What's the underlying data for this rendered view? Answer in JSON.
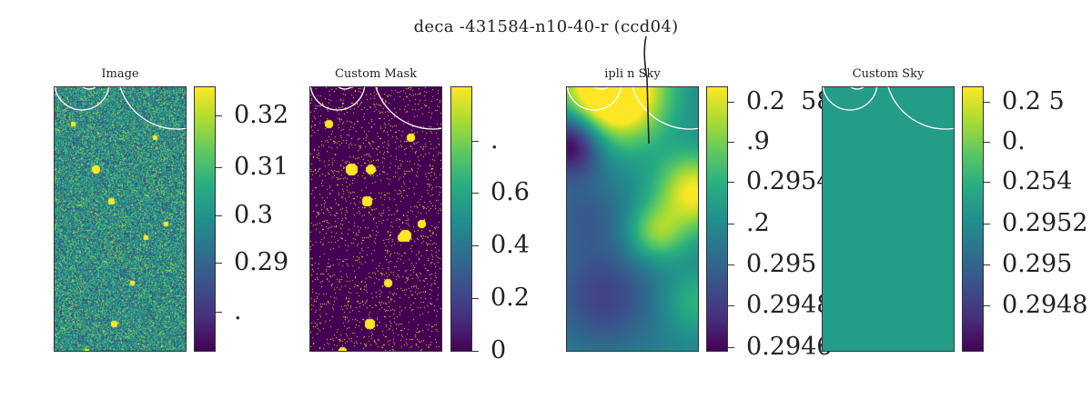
{
  "figure": {
    "title": "deca   -431584-n10-40-r (ccd04)"
  },
  "chart_data": [
    {
      "type": "heatmap",
      "title": "Image",
      "colormap": "viridis",
      "colorbar_ticks": [
        "0.32",
        "0.31",
        "0.3",
        "0.29",
        "."
      ]
    },
    {
      "type": "heatmap",
      "title": "Custom Mask",
      "colormap": "viridis",
      "colorbar_ticks": [
        ".",
        "0.6",
        "0.4",
        "0.2",
        "0"
      ]
    },
    {
      "type": "heatmap",
      "title": "ipli  n  Sky",
      "colormap": "viridis",
      "colorbar_ticks": [
        "0.2  58",
        ".9",
        "0.2954",
        ".2",
        "0.295",
        "0.2948",
        "0.2946"
      ]
    },
    {
      "type": "heatmap",
      "title": "Custom Sky",
      "colormap": "viridis",
      "colorbar_ticks": [
        "0.2 5",
        "0.",
        "0.254",
        "0.2952",
        "0.295",
        "0.2948"
      ]
    }
  ]
}
